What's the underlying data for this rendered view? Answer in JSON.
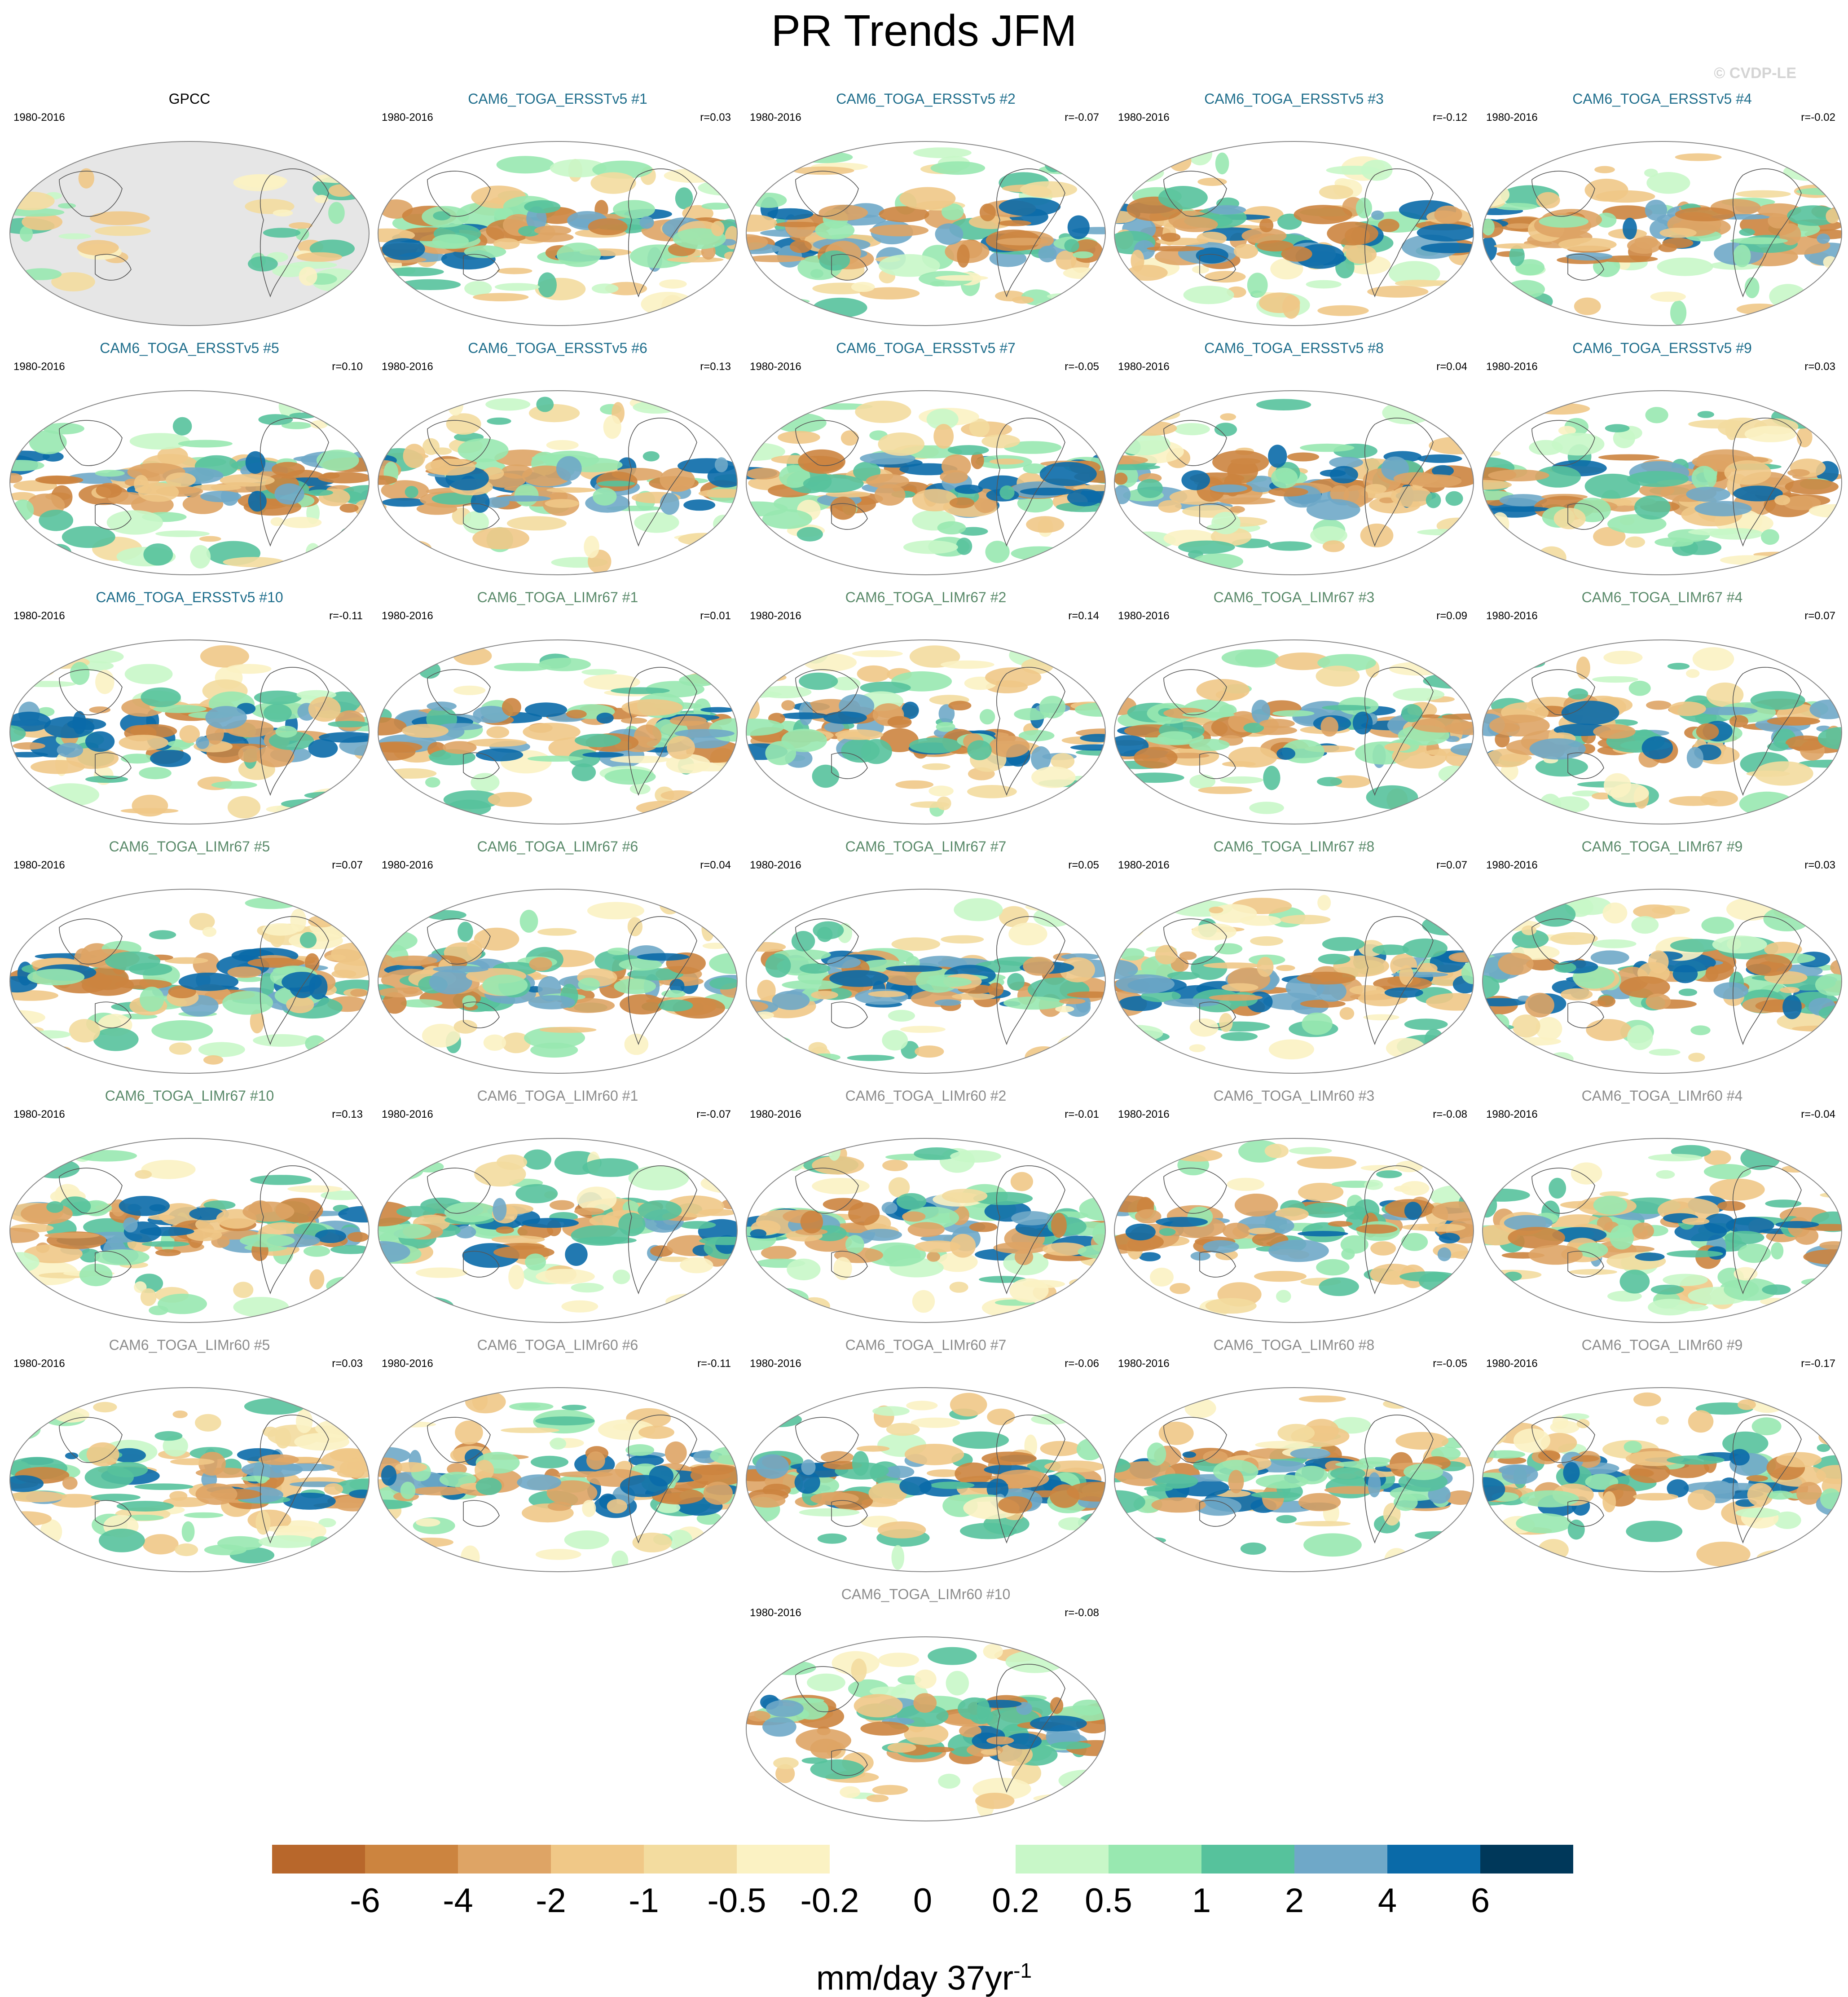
{
  "title": "PR Trends JFM",
  "watermark": "© CVDP-LE",
  "chart_data": {
    "type": "map-grid",
    "title": "PR Trends JFM",
    "projection": "global robinson-style, Pacific-centered",
    "period": "1980-2016",
    "panels": [
      {
        "title": "GPCC",
        "period": "1980-2016",
        "r": "",
        "group": "obs"
      },
      {
        "title": "CAM6_TOGA_ERSSTv5 #1",
        "period": "1980-2016",
        "r": "r=0.03",
        "group": "ersst"
      },
      {
        "title": "CAM6_TOGA_ERSSTv5 #2",
        "period": "1980-2016",
        "r": "r=-0.07",
        "group": "ersst"
      },
      {
        "title": "CAM6_TOGA_ERSSTv5 #3",
        "period": "1980-2016",
        "r": "r=-0.12",
        "group": "ersst"
      },
      {
        "title": "CAM6_TOGA_ERSSTv5 #4",
        "period": "1980-2016",
        "r": "r=-0.02",
        "group": "ersst"
      },
      {
        "title": "CAM6_TOGA_ERSSTv5 #5",
        "period": "1980-2016",
        "r": "r=0.10",
        "group": "ersst"
      },
      {
        "title": "CAM6_TOGA_ERSSTv5 #6",
        "period": "1980-2016",
        "r": "r=0.13",
        "group": "ersst"
      },
      {
        "title": "CAM6_TOGA_ERSSTv5 #7",
        "period": "1980-2016",
        "r": "r=-0.05",
        "group": "ersst"
      },
      {
        "title": "CAM6_TOGA_ERSSTv5 #8",
        "period": "1980-2016",
        "r": "r=0.04",
        "group": "ersst"
      },
      {
        "title": "CAM6_TOGA_ERSSTv5 #9",
        "period": "1980-2016",
        "r": "r=0.03",
        "group": "ersst"
      },
      {
        "title": "CAM6_TOGA_ERSSTv5 #10",
        "period": "1980-2016",
        "r": "r=-0.11",
        "group": "ersst"
      },
      {
        "title": "CAM6_TOGA_LIMr67 #1",
        "period": "1980-2016",
        "r": "r=0.01",
        "group": "limr67"
      },
      {
        "title": "CAM6_TOGA_LIMr67 #2",
        "period": "1980-2016",
        "r": "r=0.14",
        "group": "limr67"
      },
      {
        "title": "CAM6_TOGA_LIMr67 #3",
        "period": "1980-2016",
        "r": "r=0.09",
        "group": "limr67"
      },
      {
        "title": "CAM6_TOGA_LIMr67 #4",
        "period": "1980-2016",
        "r": "r=0.07",
        "group": "limr67"
      },
      {
        "title": "CAM6_TOGA_LIMr67 #5",
        "period": "1980-2016",
        "r": "r=0.07",
        "group": "limr67"
      },
      {
        "title": "CAM6_TOGA_LIMr67 #6",
        "period": "1980-2016",
        "r": "r=0.04",
        "group": "limr67"
      },
      {
        "title": "CAM6_TOGA_LIMr67 #7",
        "period": "1980-2016",
        "r": "r=0.05",
        "group": "limr67"
      },
      {
        "title": "CAM6_TOGA_LIMr67 #8",
        "period": "1980-2016",
        "r": "r=0.07",
        "group": "limr67"
      },
      {
        "title": "CAM6_TOGA_LIMr67 #9",
        "period": "1980-2016",
        "r": "r=0.03",
        "group": "limr67"
      },
      {
        "title": "CAM6_TOGA_LIMr67 #10",
        "period": "1980-2016",
        "r": "r=0.13",
        "group": "limr67"
      },
      {
        "title": "CAM6_TOGA_LIMr60 #1",
        "period": "1980-2016",
        "r": "r=-0.07",
        "group": "limr60"
      },
      {
        "title": "CAM6_TOGA_LIMr60 #2",
        "period": "1980-2016",
        "r": "r=-0.01",
        "group": "limr60"
      },
      {
        "title": "CAM6_TOGA_LIMr60 #3",
        "period": "1980-2016",
        "r": "r=-0.08",
        "group": "limr60"
      },
      {
        "title": "CAM6_TOGA_LIMr60 #4",
        "period": "1980-2016",
        "r": "r=-0.04",
        "group": "limr60"
      },
      {
        "title": "CAM6_TOGA_LIMr60 #5",
        "period": "1980-2016",
        "r": "r=0.03",
        "group": "limr60"
      },
      {
        "title": "CAM6_TOGA_LIMr60 #6",
        "period": "1980-2016",
        "r": "r=-0.11",
        "group": "limr60"
      },
      {
        "title": "CAM6_TOGA_LIMr60 #7",
        "period": "1980-2016",
        "r": "r=-0.06",
        "group": "limr60"
      },
      {
        "title": "CAM6_TOGA_LIMr60 #8",
        "period": "1980-2016",
        "r": "r=-0.05",
        "group": "limr60"
      },
      {
        "title": "CAM6_TOGA_LIMr60 #9",
        "period": "1980-2016",
        "r": "r=-0.17",
        "group": "limr60"
      },
      {
        "title": "CAM6_TOGA_LIMr60 #10",
        "period": "1980-2016",
        "r": "r=-0.08",
        "group": "limr60"
      }
    ],
    "group_title_colors": {
      "obs": "#000000",
      "ersst": "#1f6e8c",
      "limr67": "#5a8a6a",
      "limr60": "#8c8c8c"
    },
    "colorbar": {
      "colors": [
        "#b8672b",
        "#cc843f",
        "#dea465",
        "#f0c887",
        "#f3dc9f",
        "#fbf2c3",
        "#ffffff",
        "#ffffff",
        "#c8f7c8",
        "#98e8b0",
        "#56c29c",
        "#6fa8c8",
        "#0a6aa8",
        "#00385a"
      ],
      "tick_labels": [
        "-6",
        "-4",
        "-2",
        "-1",
        "-0.5",
        "-0.2",
        "0",
        "0.2",
        "0.5",
        "1",
        "2",
        "4",
        "6"
      ],
      "units": "mm/day 37yr",
      "units_superscript": "-1"
    }
  }
}
